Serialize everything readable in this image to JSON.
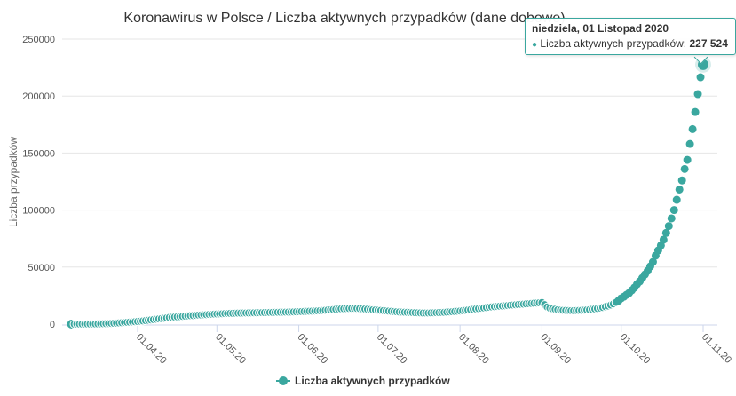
{
  "chart_data": {
    "type": "scatter",
    "title": "Koronawirus w Polsce / Liczba aktywnych przypadków (dane dobowe)",
    "ylabel": "Liczba przypadków",
    "xlabel": "",
    "ylim": [
      0,
      250000
    ],
    "yticks": [
      "0",
      "50000",
      "100000",
      "150000",
      "200000",
      "250000"
    ],
    "xticks": [
      "01.04.20",
      "01.05.20",
      "01.06.20",
      "01.07.20",
      "01.08.20",
      "01.09.20",
      "01.10.20",
      "01.11.20"
    ],
    "grid": true,
    "legend_position": "bottom",
    "color": "#3aa79f",
    "series": [
      {
        "name": "Liczba aktywnych przypadków",
        "months": [
          {
            "month": "2020-03",
            "first_day": 7,
            "values": [
              5,
              10,
              15,
              20,
              25,
              35,
              50,
              65,
              100,
              140,
              200,
              240,
              310,
              410,
              520,
              620,
              740,
              880,
              1050,
              1250,
              1450,
              1600,
              1750,
              1900,
              2100
            ]
          },
          {
            "month": "2020-04",
            "first_day": 1,
            "values": [
              2300,
              2550,
              2800,
              3100,
              3400,
              3700,
              4000,
              4300,
              4600,
              4900,
              5200,
              5500,
              5800,
              6000,
              6200,
              6400,
              6600,
              6800,
              7000,
              7200,
              7400,
              7500,
              7700,
              7900,
              8000,
              8200,
              8300,
              8500,
              8600,
              8800
            ]
          },
          {
            "month": "2020-05",
            "first_day": 1,
            "values": [
              8900,
              9000,
              9100,
              9200,
              9300,
              9400,
              9450,
              9500,
              9600,
              9650,
              9700,
              9750,
              9800,
              9850,
              9900,
              9950,
              10000,
              10050,
              10100,
              10150,
              10200,
              10250,
              10300,
              10350,
              10400,
              10450,
              10500,
              10550,
              10600,
              10700,
              10800
            ]
          },
          {
            "month": "2020-06",
            "first_day": 1,
            "values": [
              10900,
              11000,
              11100,
              11200,
              11300,
              11400,
              11500,
              11600,
              11800,
              12000,
              12200,
              12400,
              12600,
              12800,
              13000,
              13200,
              13400,
              13500,
              13600,
              13700,
              13800,
              13800,
              13700,
              13600,
              13400,
              13200,
              13000,
              12800,
              12600,
              12400
            ]
          },
          {
            "month": "2020-07",
            "first_day": 1,
            "values": [
              12200,
              12000,
              11800,
              11600,
              11400,
              11200,
              11000,
              10800,
              10600,
              10500,
              10400,
              10300,
              10200,
              10100,
              10000,
              9900,
              9800,
              9700,
              9700,
              9700,
              9800,
              9900,
              10000,
              10100,
              10200,
              10300,
              10500,
              10700,
              10900,
              11100,
              11300
            ]
          },
          {
            "month": "2020-08",
            "first_day": 1,
            "values": [
              11500,
              11800,
              12100,
              12400,
              12700,
              13000,
              13300,
              13600,
              13900,
              14200,
              14500,
              14800,
              15100,
              15300,
              15500,
              15700,
              15900,
              16100,
              16300,
              16500,
              16700,
              16900,
              17100,
              17300,
              17500,
              17700,
              17900,
              18100,
              18300,
              18500,
              18700
            ]
          },
          {
            "month": "2020-09",
            "first_day": 1,
            "values": [
              18900,
              17000,
              15000,
              14000,
              13400,
              13000,
              12600,
              12300,
              12100,
              12000,
              11900,
              11800,
              11800,
              11900,
              12000,
              12100,
              12300,
              12500,
              12700,
              13000,
              13300,
              13700,
              14100,
              14600,
              15200,
              15900,
              16700,
              17700,
              19000,
              20500
            ]
          },
          {
            "month": "2020-10",
            "first_day": 1,
            "values": [
              22600,
              24000,
              25700,
              27300,
              29600,
              32000,
              35000,
              37400,
              40500,
              43600,
              46700,
              50600,
              54500,
              60000,
              64600,
              69000,
              74000,
              80000,
              86000,
              92700,
              100000,
              109000,
              118000,
              126000,
              136000,
              144000,
              158000,
              171000,
              186000,
              201700,
              216500
            ]
          },
          {
            "month": "2020-11",
            "first_day": 1,
            "values": [
              227524
            ]
          }
        ]
      }
    ]
  },
  "tooltip": {
    "date": "niedziela, 01 Listopad 2020",
    "series_label": "Liczba aktywnych przypadków:",
    "value": "227 524"
  }
}
